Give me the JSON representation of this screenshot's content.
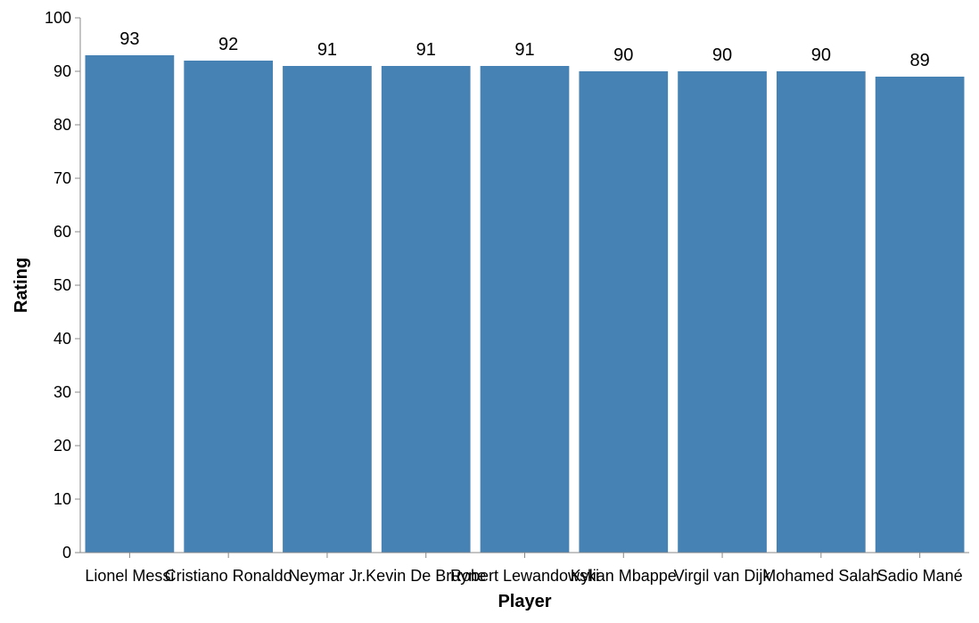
{
  "chart_data": {
    "type": "bar",
    "title": "",
    "xlabel": "Player",
    "ylabel": "Rating",
    "ylim": [
      0,
      100
    ],
    "yticks": [
      0,
      10,
      20,
      30,
      40,
      50,
      60,
      70,
      80,
      90,
      100
    ],
    "categories": [
      "Lionel Messi",
      "Cristiano Ronaldo",
      "Neymar Jr.",
      "Kevin De Bruyne",
      "Robert Lewandowski",
      "Kylian Mbappe",
      "Virgil van Dijk",
      "Mohamed Salah",
      "Sadio Mané"
    ],
    "values": [
      93,
      92,
      91,
      91,
      91,
      90,
      90,
      90,
      89
    ],
    "bar_color": "#4682b4",
    "axis_color": "#888888",
    "grid": false,
    "legend": "none"
  }
}
